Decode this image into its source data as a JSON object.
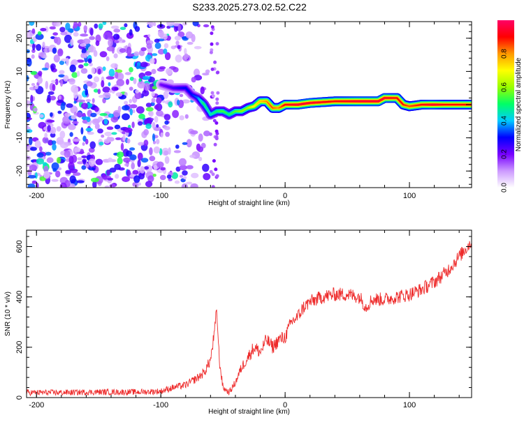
{
  "title": "S233.2025.273.02.52.C22",
  "chart_data": [
    {
      "type": "heatmap",
      "title": "S233.2025.273.02.52.C22",
      "xlabel": "Height of straight line (km)",
      "ylabel": "Frequency (Hz)",
      "xlim": [
        -208,
        150
      ],
      "ylim": [
        -25,
        25
      ],
      "xticks": [
        -200,
        -100,
        0,
        100
      ],
      "xtick_labels": [
        "-200",
        "-100",
        "0",
        "100"
      ],
      "yticks": [
        -20,
        -10,
        0,
        10,
        20
      ],
      "ytick_labels": [
        "-20",
        "-10",
        "0",
        "10",
        "20"
      ],
      "colorbar": {
        "label": "Normalized spectral amplitude",
        "range": [
          0,
          1
        ],
        "ticks": [
          0,
          0.2,
          0.4,
          0.6,
          0.8
        ],
        "tick_labels": [
          "0.0",
          "0.2",
          "0.4",
          "0.6",
          "0.8"
        ],
        "colors": [
          "#ffffff",
          "#cc99ff",
          "#7700ff",
          "#0000ff",
          "#00ccff",
          "#00ff66",
          "#99ff00",
          "#ffff00",
          "#ff9900",
          "#ff0000",
          "#ff0066"
        ]
      },
      "noise_region": {
        "x": [
          -208,
          -70
        ],
        "amplitude": 0.15
      },
      "ridge": {
        "x": [
          -100,
          -90,
          -80,
          -75,
          -70,
          -65,
          -60,
          -55,
          -50,
          -45,
          -40,
          -35,
          -30,
          -25,
          -20,
          -15,
          -10,
          -5,
          0,
          10,
          20,
          40,
          60,
          75,
          80,
          90,
          95,
          100,
          110,
          120,
          130,
          140,
          150
        ],
        "frequency": [
          6,
          5,
          5,
          3,
          2,
          0,
          -3,
          -2,
          -2,
          -3,
          -2,
          -2,
          -1,
          -0.5,
          1,
          1,
          -1,
          -1,
          0,
          0,
          0.5,
          1,
          1,
          1,
          2,
          2,
          0,
          -0.5,
          0,
          0,
          0,
          0,
          0
        ],
        "amplitude": [
          0.2,
          0.25,
          0.3,
          0.3,
          0.35,
          0.5,
          0.45,
          0.5,
          0.55,
          0.5,
          0.55,
          0.6,
          0.6,
          0.7,
          0.75,
          0.8,
          0.85,
          0.8,
          0.9,
          0.95,
          0.95,
          0.9,
          0.95,
          0.95,
          0.95,
          0.9,
          0.9,
          0.85,
          0.9,
          0.95,
          0.9,
          0.9,
          0.9
        ]
      }
    },
    {
      "type": "line",
      "xlabel": "Height of straight line (km)",
      "ylabel": "SNR (10 * v/v)",
      "xlim": [
        -208,
        150
      ],
      "ylim": [
        0,
        665
      ],
      "xticks": [
        -200,
        -100,
        0,
        100
      ],
      "xtick_labels": [
        "-200",
        "-100",
        "0",
        "100"
      ],
      "yticks": [
        0,
        200,
        400,
        600
      ],
      "ytick_labels": [
        "0",
        "200",
        "400",
        "600"
      ],
      "series": [
        {
          "name": "SNR",
          "color": "#ee2b2b",
          "x": [
            -208,
            -180,
            -150,
            -120,
            -100,
            -90,
            -80,
            -70,
            -65,
            -60,
            -57,
            -55,
            -53,
            -50,
            -45,
            -40,
            -35,
            -30,
            -25,
            -20,
            -15,
            -10,
            -5,
            0,
            5,
            10,
            15,
            20,
            30,
            40,
            50,
            60,
            65,
            70,
            80,
            90,
            100,
            110,
            120,
            130,
            140,
            150
          ],
          "y": [
            20,
            20,
            22,
            22,
            25,
            40,
            50,
            80,
            100,
            150,
            250,
            350,
            150,
            40,
            20,
            60,
            120,
            160,
            200,
            180,
            230,
            200,
            230,
            240,
            300,
            320,
            360,
            380,
            400,
            410,
            410,
            400,
            360,
            390,
            390,
            400,
            410,
            430,
            460,
            500,
            560,
            620
          ],
          "noise": 28
        }
      ]
    }
  ]
}
